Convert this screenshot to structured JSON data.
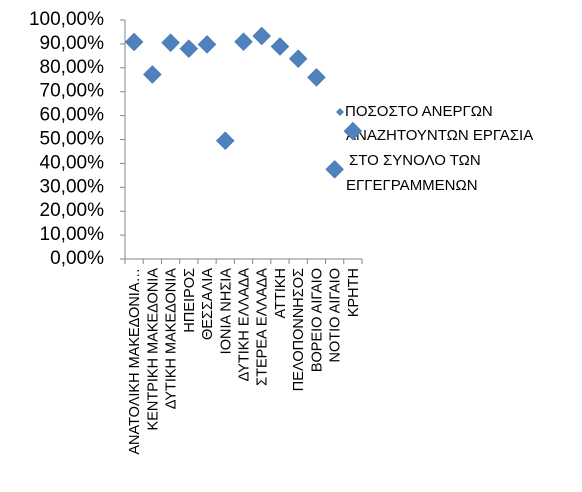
{
  "chart_data": {
    "type": "scatter",
    "title": "",
    "xlabel": "",
    "ylabel": "",
    "categories": [
      "ΑΝΑΤΟΛΙΚΗ ΜΑΚΕΔΟΝΙΑ…",
      "ΚΕΝΤΡΙΚΗ ΜΑΚΕΔΟΝΙΑ",
      "ΔΥΤΙΚΗ ΜΑΚΕΔΟΝΙΑ",
      "ΗΠΕΙΡΟΣ",
      "ΘΕΣΣΑΛΙΑ",
      "ΙΟΝΙΑ ΝΗΣΙΑ",
      "ΔΥΤΙΚΗ ΕΛΛΑΔΑ",
      "ΣΤΕΡΕΑ ΕΛΛΑΔΑ",
      "ΑΤΤΙΚΗ",
      "ΠΕΛΟΠΟΝΝΗΣΟΣ",
      "ΒΟΡΕΙΟ ΑΙΓΑΙΟ",
      "ΝΟΤΙΟ ΑΙΓΑΙΟ",
      "ΚΡΗΤΗ"
    ],
    "series": [
      {
        "name": "ΠΟΣΟΣΤΟ ΑΝΕΡΓΩΝ ΑΝΑΖΗΤΟΥΝΤΩΝ ΕΡΓΑΣΙΑ ΣΤΟ ΣΥΝΟΛΟ ΤΩΝ ΕΓΓΕΓΡΑΜΜΕΝΩΝ",
        "values": [
          90.8,
          77.2,
          90.5,
          88.0,
          89.8,
          49.5,
          90.9,
          93.3,
          88.9,
          83.8,
          76.0,
          37.5,
          53.5
        ]
      }
    ],
    "ylim": [
      0,
      100
    ],
    "yticks": [
      "0,00%",
      "10,00%",
      "20,00%",
      "30,00%",
      "40,00%",
      "50,00%",
      "60,00%",
      "70,00%",
      "80,00%",
      "90,00%",
      "100,00%"
    ],
    "grid": false,
    "legend": {
      "placement": "right",
      "lines": [
        "ΠΟΣΟΣΤΟ  ΑΝΕΡΓΩΝ",
        "ΑΝΑΖΗΤΟΥΝΤΩΝ ΕΡΓΑΣΙΑ",
        "ΣΤΟ ΣΥΝΟΛΟ ΤΩΝ",
        "ΕΓΓΕΓΡΑΜΜΕΝΩΝ"
      ]
    },
    "marker": "diamond",
    "marker_color": "#4f81bd",
    "axis_color": "#868686"
  }
}
